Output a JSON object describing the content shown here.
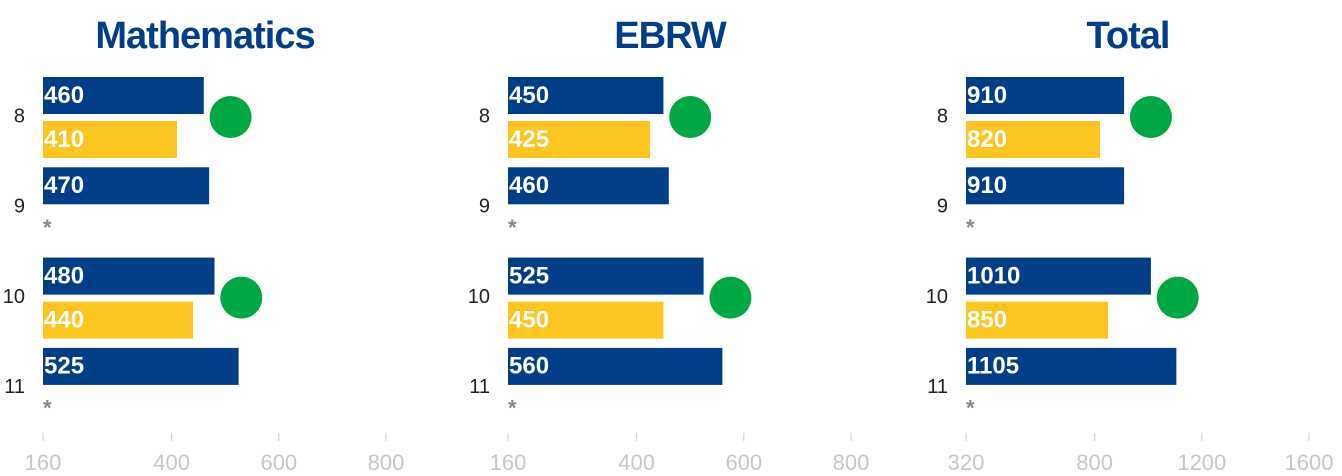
{
  "chart_data": [
    {
      "type": "bar",
      "title": "Mathematics",
      "categories": [
        "8",
        "9",
        "10",
        "11"
      ],
      "series": [
        {
          "color": "#003f87",
          "values": [
            460,
            470,
            480,
            525
          ]
        },
        {
          "color": "#fdc520",
          "values": [
            410,
            null,
            440,
            null
          ]
        }
      ],
      "markers": {
        "color": "#00a844",
        "values": [
          510,
          null,
          530,
          null
        ]
      },
      "annotations": [
        null,
        "*",
        null,
        "*"
      ],
      "xlim": [
        160,
        800
      ],
      "xticks": [
        160,
        400,
        600,
        800
      ]
    },
    {
      "type": "bar",
      "title": "EBRW",
      "categories": [
        "8",
        "9",
        "10",
        "11"
      ],
      "series": [
        {
          "color": "#003f87",
          "values": [
            450,
            460,
            525,
            560
          ]
        },
        {
          "color": "#fdc520",
          "values": [
            425,
            null,
            450,
            null
          ]
        }
      ],
      "markers": {
        "color": "#00a844",
        "values": [
          500,
          null,
          575,
          null
        ]
      },
      "annotations": [
        null,
        "*",
        null,
        "*"
      ],
      "xlim": [
        160,
        800
      ],
      "xticks": [
        160,
        400,
        600,
        800
      ]
    },
    {
      "type": "bar",
      "title": "Total",
      "categories": [
        "8",
        "9",
        "10",
        "11"
      ],
      "series": [
        {
          "color": "#003f87",
          "values": [
            910,
            910,
            1010,
            1105
          ]
        },
        {
          "color": "#fdc520",
          "values": [
            820,
            null,
            850,
            null
          ]
        }
      ],
      "markers": {
        "color": "#00a844",
        "values": [
          1010,
          null,
          1110,
          null
        ]
      },
      "annotations": [
        null,
        "*",
        null,
        "*"
      ],
      "xlim": [
        320,
        1600
      ],
      "xticks": [
        320,
        800,
        1200,
        1600
      ]
    }
  ]
}
